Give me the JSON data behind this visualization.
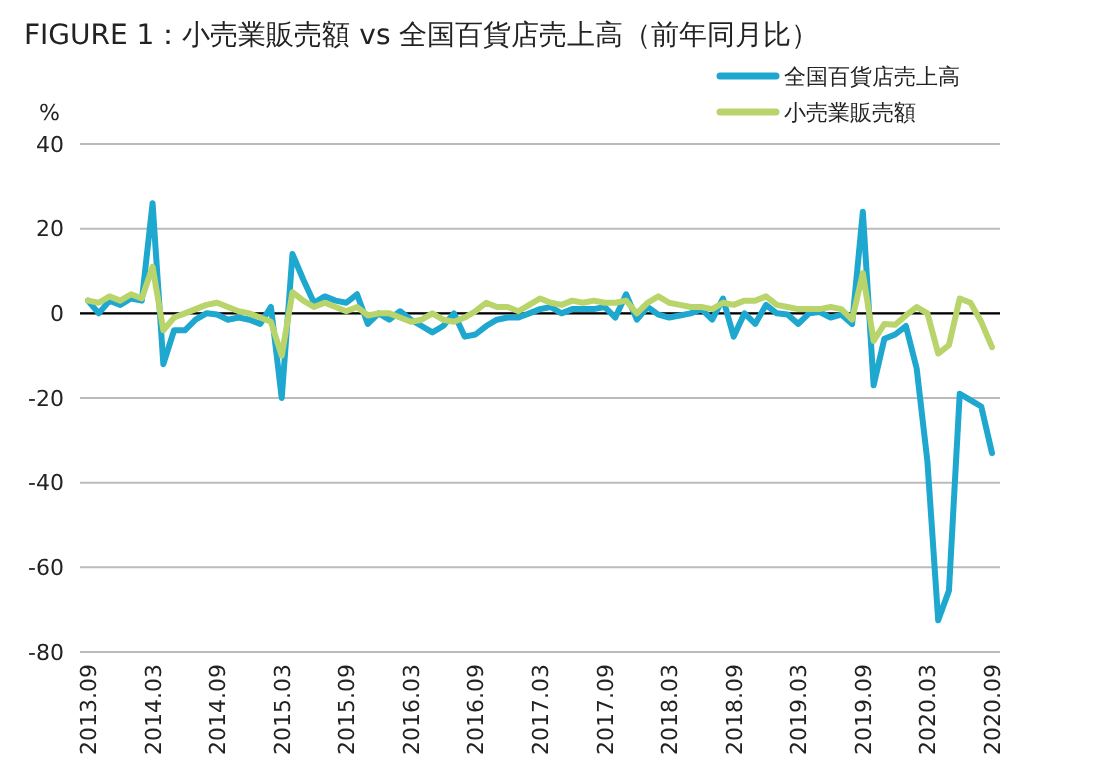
{
  "chart_data": {
    "type": "line",
    "title": "FIGURE 1：小売業販売額 vs 全国百貨店売上高（前年同月比）",
    "ylabel": "%",
    "categories": [
      "2013.09",
      null,
      null,
      null,
      null,
      null,
      "2014.03",
      null,
      null,
      null,
      null,
      null,
      "2014.09",
      null,
      null,
      null,
      null,
      null,
      "2015.03",
      null,
      null,
      null,
      null,
      null,
      "2015.09",
      null,
      null,
      null,
      null,
      null,
      "2016.03",
      null,
      null,
      null,
      null,
      null,
      "2016.09",
      null,
      null,
      null,
      null,
      null,
      "2017.03",
      null,
      null,
      null,
      null,
      null,
      "2017.09",
      null,
      null,
      null,
      null,
      null,
      "2018.03",
      null,
      null,
      null,
      null,
      null,
      "2018.09",
      null,
      null,
      null,
      null,
      null,
      "2019.03",
      null,
      null,
      null,
      null,
      null,
      "2019.09",
      null,
      null,
      null,
      null,
      null,
      "2020.03",
      null,
      null,
      null,
      null,
      null,
      "2020.09"
    ],
    "series": [
      {
        "name": "全国百貨店売上高",
        "color": "#1ea8cf",
        "values": [
          3,
          0,
          3,
          2,
          3.5,
          3,
          26,
          -12,
          -4,
          -4,
          -1.5,
          0,
          -0.3,
          -1.5,
          -1,
          -1.5,
          -2.5,
          1.5,
          -20,
          14,
          8,
          2.5,
          4,
          3,
          2.5,
          4.5,
          -2.5,
          0,
          -1.5,
          0.5,
          -1.5,
          -3,
          -4.5,
          -3,
          0,
          -5.5,
          -5,
          -3,
          -1.5,
          -1,
          -1,
          0,
          1,
          1.5,
          0,
          1,
          1,
          1,
          1.5,
          -1,
          4.5,
          -1.5,
          1.5,
          -0.3,
          -1,
          -0.5,
          0,
          1,
          -1.5,
          3.5,
          -5.5,
          0,
          -2.5,
          2,
          0,
          -0.3,
          -2.5,
          0,
          0.3,
          -1,
          -0.3,
          -2.5,
          24,
          -17,
          -6,
          -5,
          -3,
          -13,
          -35,
          -72.5,
          -65.5,
          -19,
          -20.5,
          -22,
          -33
        ]
      },
      {
        "name": "小売業販売額",
        "color": "#b9d46a",
        "values": [
          3,
          2.5,
          4,
          3,
          4.5,
          3.5,
          11,
          -4,
          -1,
          0,
          1,
          2,
          2.5,
          1.5,
          0.5,
          0,
          -1,
          -2,
          -10,
          5,
          3,
          1.5,
          2.5,
          1.5,
          0.5,
          1.5,
          -0.5,
          0,
          0,
          -1,
          -2,
          -1.5,
          0,
          -1.5,
          -2,
          -1,
          0.5,
          2.5,
          1.5,
          1.5,
          0.5,
          2,
          3.5,
          2.5,
          2,
          3,
          2.5,
          3,
          2.5,
          2.5,
          3,
          0,
          2.5,
          4,
          2.5,
          2,
          1.5,
          1.5,
          1,
          2.5,
          2,
          3,
          3,
          4,
          2,
          1.5,
          1,
          1,
          1,
          1.5,
          1,
          -1.5,
          9.5,
          -6.5,
          -2.5,
          -2.7,
          -0.5,
          1.5,
          0,
          -9.5,
          -7.5,
          3.5,
          2.5,
          -2,
          -8
        ]
      }
    ],
    "ylim": [
      -80,
      40
    ],
    "yticks": [
      -80,
      -60,
      -40,
      -20,
      0,
      20,
      40
    ],
    "grid": "y",
    "legend": "top right",
    "ref_lines": [
      {
        "axis": "y",
        "value": 0,
        "color": "#000000"
      }
    ]
  }
}
